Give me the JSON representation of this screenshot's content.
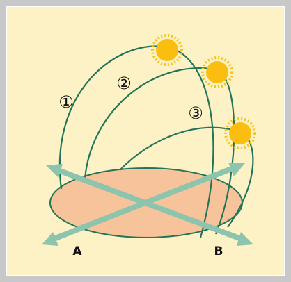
{
  "path_labels": [
    "①",
    "②",
    "③"
  ],
  "points": {
    "a": "A",
    "b": "B"
  }
}
